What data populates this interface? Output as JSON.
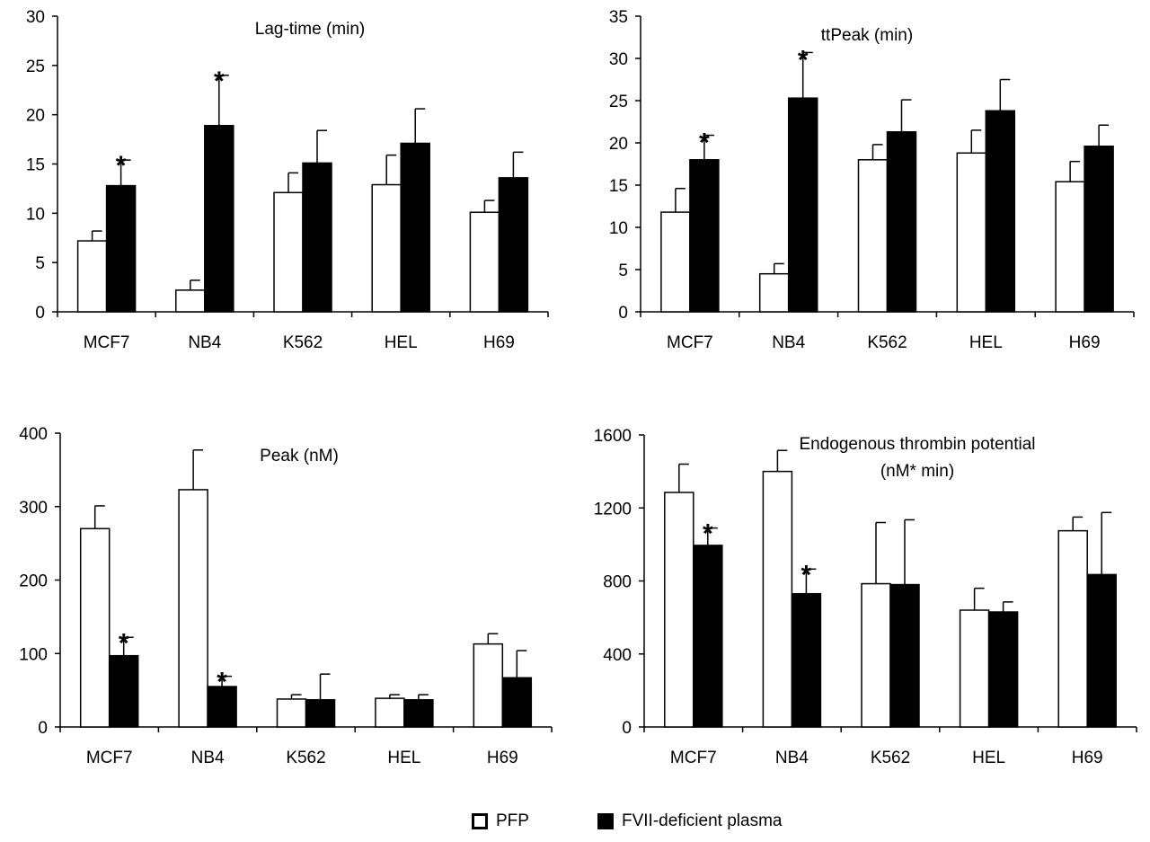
{
  "legend": {
    "series1": "PFP",
    "series2": "FVII-deficient plasma"
  },
  "colors": {
    "series1_fill": "#ffffff",
    "series2_fill": "#000000",
    "axis": "#000000"
  },
  "significance_marker": "*",
  "chart_data": [
    {
      "type": "bar",
      "title": "Lag-time (min)",
      "categories": [
        "MCF7",
        "NB4",
        "K562",
        "HEL",
        "H69"
      ],
      "ylim": [
        0,
        30
      ],
      "yticks": [
        0,
        5,
        10,
        15,
        20,
        25,
        30
      ],
      "series": [
        {
          "name": "PFP",
          "values": [
            7.2,
            2.2,
            12.1,
            12.9,
            10.1
          ],
          "errors": [
            1.0,
            1.0,
            2.0,
            3.0,
            1.2
          ],
          "significant": [
            false,
            false,
            false,
            false,
            false
          ]
        },
        {
          "name": "FVII-deficient plasma",
          "values": [
            12.8,
            18.9,
            15.1,
            17.1,
            13.6
          ],
          "errors": [
            2.6,
            5.1,
            3.3,
            3.5,
            2.6
          ],
          "significant": [
            true,
            true,
            false,
            false,
            false
          ]
        }
      ]
    },
    {
      "type": "bar",
      "title": "ttPeak (min)",
      "categories": [
        "MCF7",
        "NB4",
        "K562",
        "HEL",
        "H69"
      ],
      "ylim": [
        0,
        35
      ],
      "yticks": [
        0,
        5,
        10,
        15,
        20,
        25,
        30,
        35
      ],
      "series": [
        {
          "name": "PFP",
          "values": [
            11.8,
            4.5,
            18.0,
            18.8,
            15.4
          ],
          "errors": [
            2.8,
            1.2,
            1.8,
            2.7,
            2.4
          ],
          "significant": [
            false,
            false,
            false,
            false,
            false
          ]
        },
        {
          "name": "FVII-deficient plasma",
          "values": [
            18.0,
            25.3,
            21.3,
            23.8,
            19.6
          ],
          "errors": [
            2.9,
            5.4,
            3.8,
            3.7,
            2.5
          ],
          "significant": [
            true,
            true,
            false,
            false,
            false
          ]
        }
      ]
    },
    {
      "type": "bar",
      "title": "Peak (nM)",
      "categories": [
        "MCF7",
        "NB4",
        "K562",
        "HEL",
        "H69"
      ],
      "ylim": [
        0,
        400
      ],
      "yticks": [
        0,
        100,
        200,
        300,
        400
      ],
      "series": [
        {
          "name": "PFP",
          "values": [
            270,
            323,
            38,
            39,
            113
          ],
          "errors": [
            31,
            54,
            6,
            5,
            14
          ],
          "significant": [
            false,
            false,
            false,
            false,
            false
          ]
        },
        {
          "name": "FVII-deficient plasma",
          "values": [
            97,
            55,
            37,
            37,
            67
          ],
          "errors": [
            25,
            14,
            35,
            7,
            37
          ],
          "significant": [
            true,
            true,
            false,
            false,
            false
          ]
        }
      ]
    },
    {
      "type": "bar",
      "title": "Endogenous thrombin potential",
      "subtitle": "(nM* min)",
      "categories": [
        "MCF7",
        "NB4",
        "K562",
        "HEL",
        "H69"
      ],
      "ylim": [
        0,
        1600
      ],
      "yticks": [
        0,
        400,
        800,
        1200,
        1600
      ],
      "series": [
        {
          "name": "PFP",
          "values": [
            1285,
            1400,
            785,
            640,
            1075
          ],
          "errors": [
            155,
            115,
            335,
            120,
            75
          ],
          "significant": [
            false,
            false,
            false,
            false,
            false
          ]
        },
        {
          "name": "FVII-deficient plasma",
          "values": [
            995,
            730,
            780,
            630,
            835
          ],
          "errors": [
            95,
            135,
            355,
            55,
            340
          ],
          "significant": [
            true,
            true,
            false,
            false,
            false
          ]
        }
      ]
    }
  ]
}
